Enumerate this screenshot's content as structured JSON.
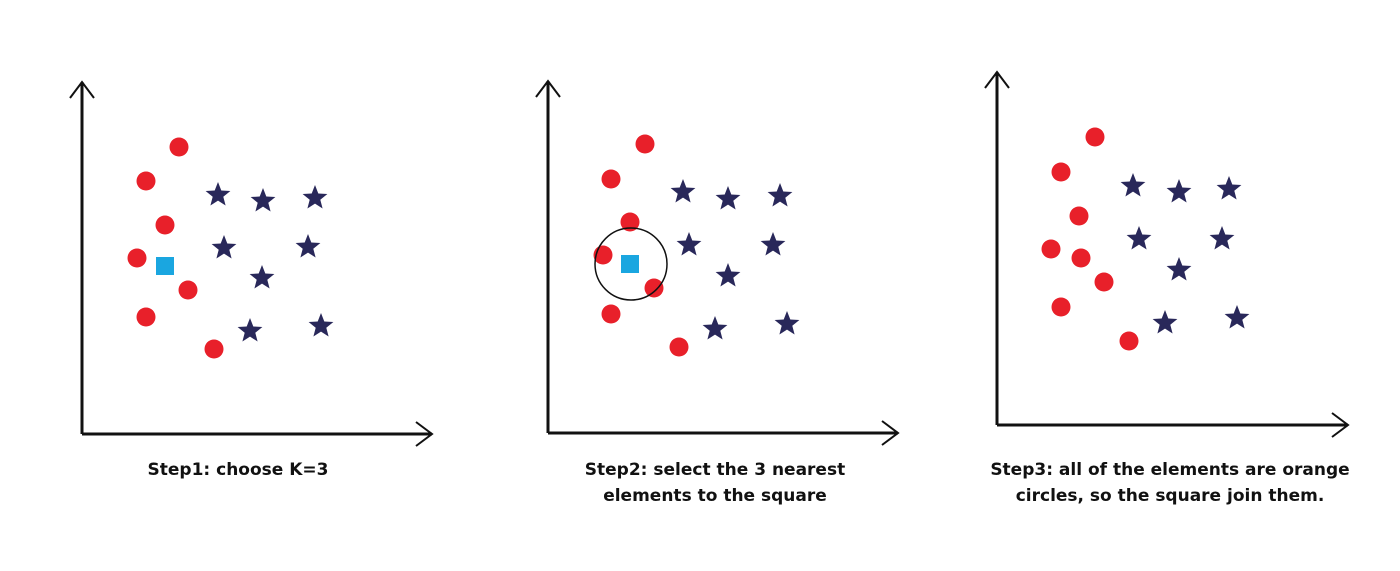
{
  "colors": {
    "circle": "#e8202a",
    "star": "#29285a",
    "square": "#1aa6e0",
    "axis": "#111111",
    "ring": "#111111"
  },
  "panels": [
    {
      "id": "step1",
      "caption_lines": [
        "Step1: choose K=3"
      ],
      "show_square": true,
      "show_ring": false
    },
    {
      "id": "step2",
      "caption_lines": [
        "Step2: select the 3 nearest",
        "elements to the square"
      ],
      "show_square": true,
      "show_ring": true
    },
    {
      "id": "step3",
      "caption_lines": [
        "Step3: all of the elements are orange",
        "circles, so the square join them."
      ],
      "show_square": false,
      "show_ring": false,
      "square_joined_as_circle": true
    }
  ]
}
